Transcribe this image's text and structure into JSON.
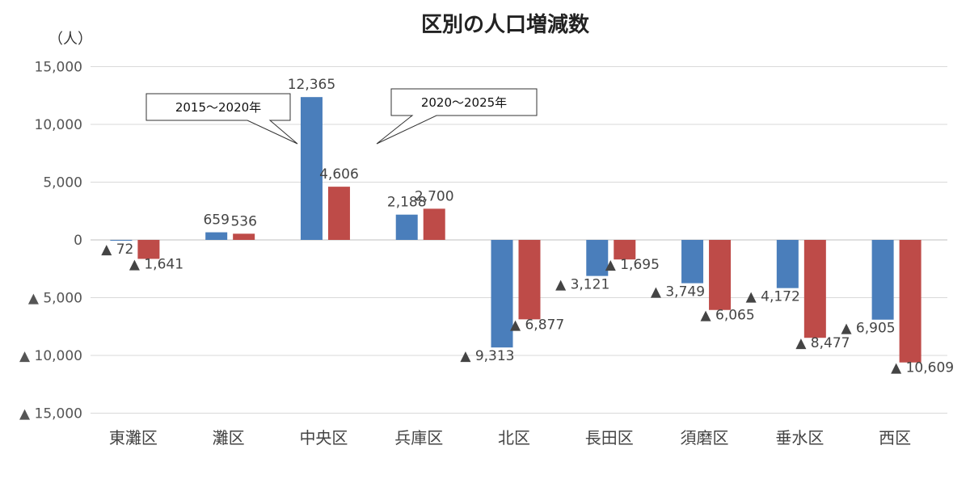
{
  "chart_data": {
    "type": "bar",
    "title": "区別の人口増減数",
    "ylabel": "（人）",
    "ylim": [
      -15000,
      15000
    ],
    "yticks": [
      {
        "value": 15000,
        "label": "15,000"
      },
      {
        "value": 10000,
        "label": "10,000"
      },
      {
        "value": 5000,
        "label": "5,000"
      },
      {
        "value": 0,
        "label": "0"
      },
      {
        "value": -5000,
        "label": "▲ 5,000"
      },
      {
        "value": -10000,
        "label": "▲ 10,000"
      },
      {
        "value": -15000,
        "label": "▲ 15,000"
      }
    ],
    "categories": [
      "東灘区",
      "灘区",
      "中央区",
      "兵庫区",
      "北区",
      "長田区",
      "須磨区",
      "垂水区",
      "西区"
    ],
    "series": [
      {
        "name": "2015～2020年",
        "color": "#4a7ebb",
        "values": [
          -72,
          659,
          12365,
          2188,
          -9313,
          -3121,
          -3749,
          -4172,
          -6905
        ],
        "labels": [
          "▲ 72",
          "659",
          "12,365",
          "2,188",
          "▲ 9,313",
          "▲ 3,121",
          "▲ 3,749",
          "▲ 4,172",
          "▲ 6,905"
        ]
      },
      {
        "name": "2020～2025年",
        "color": "#be4b48",
        "values": [
          -1641,
          536,
          4606,
          2700,
          -6877,
          -1695,
          -6065,
          -8477,
          -10609
        ],
        "labels": [
          "▲ 1,641",
          "536",
          "4,606",
          "2,700",
          "▲ 6,877",
          "▲ 1,695",
          "▲ 6,065",
          "▲ 8,477",
          "▲ 10,609"
        ]
      }
    ],
    "grid": true,
    "legend": "callouts"
  }
}
